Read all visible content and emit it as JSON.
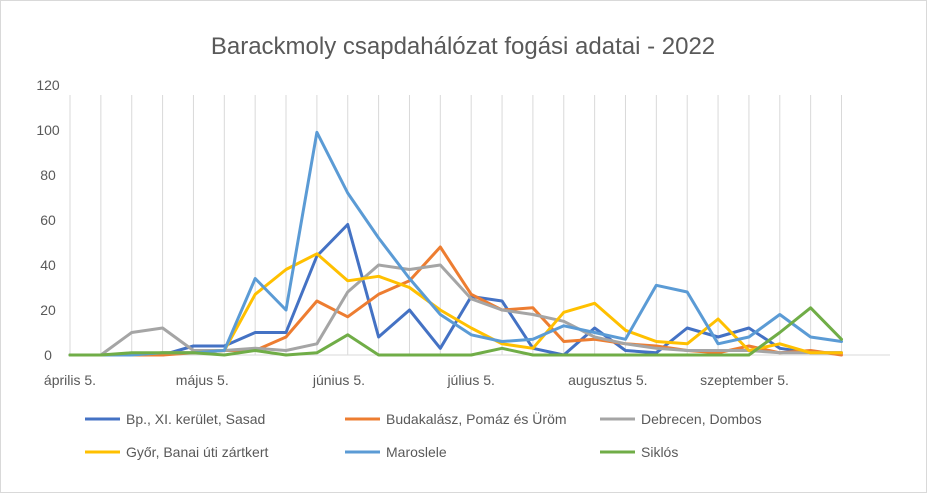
{
  "chart_data": {
    "type": "line",
    "title": "Barackmoly csapdahálózat fogási adatai - 2022",
    "xlabel": "",
    "ylabel": "",
    "ylim": [
      0,
      120
    ],
    "yticks": [
      0,
      20,
      40,
      60,
      80,
      100,
      120
    ],
    "grid": "vertical lines at data points",
    "legend_position": "bottom",
    "x": [
      "2022-04-05",
      "2022-04-12",
      "2022-04-19",
      "2022-04-26",
      "2022-05-03",
      "2022-05-10",
      "2022-05-17",
      "2022-05-24",
      "2022-05-31",
      "2022-06-07",
      "2022-06-14",
      "2022-06-21",
      "2022-06-28",
      "2022-07-05",
      "2022-07-12",
      "2022-07-19",
      "2022-07-26",
      "2022-08-02",
      "2022-08-09",
      "2022-08-16",
      "2022-08-23",
      "2022-08-30",
      "2022-09-06",
      "2022-09-13",
      "2022-09-20",
      "2022-09-27"
    ],
    "x_tick_labels": [
      {
        "label": "április 5.",
        "date": "2022-04-05"
      },
      {
        "label": "május 5.",
        "date": "2022-05-05"
      },
      {
        "label": "június 5.",
        "date": "2022-06-05"
      },
      {
        "label": "július 5.",
        "date": "2022-07-05"
      },
      {
        "label": "augusztus 5.",
        "date": "2022-08-05"
      },
      {
        "label": "szeptember 5.",
        "date": "2022-09-05"
      }
    ],
    "series": [
      {
        "name": "Bp., XI. kerület, Sasad",
        "color": "#4472c4",
        "points": [
          [
            "2022-04-05",
            0
          ],
          [
            "2022-04-19",
            0
          ],
          [
            "2022-04-26",
            0
          ],
          [
            "2022-05-03",
            4
          ],
          [
            "2022-05-10",
            4
          ],
          [
            "2022-05-17",
            10
          ],
          [
            "2022-05-24",
            10
          ],
          [
            "2022-05-31",
            44
          ],
          [
            "2022-06-07",
            58
          ],
          [
            "2022-06-14",
            8
          ],
          [
            "2022-06-21",
            20
          ],
          [
            "2022-06-28",
            3
          ],
          [
            "2022-07-05",
            26
          ],
          [
            "2022-07-12",
            24
          ],
          [
            "2022-07-19",
            3
          ],
          [
            "2022-07-26",
            0
          ],
          [
            "2022-08-02",
            12
          ],
          [
            "2022-08-09",
            2
          ],
          [
            "2022-08-16",
            1
          ],
          [
            "2022-08-23",
            12
          ],
          [
            "2022-08-30",
            8
          ],
          [
            "2022-09-06",
            12
          ],
          [
            "2022-09-13",
            3
          ],
          [
            "2022-09-20",
            1
          ],
          [
            "2022-09-27",
            1
          ]
        ]
      },
      {
        "name": "Budakalász, Pomáz és Üröm",
        "color": "#ed7d31",
        "points": [
          [
            "2022-04-05",
            0
          ],
          [
            "2022-04-19",
            0
          ],
          [
            "2022-04-26",
            0
          ],
          [
            "2022-05-03",
            1
          ],
          [
            "2022-05-10",
            2
          ],
          [
            "2022-05-17",
            2
          ],
          [
            "2022-05-24",
            8
          ],
          [
            "2022-05-31",
            24
          ],
          [
            "2022-06-07",
            17
          ],
          [
            "2022-06-14",
            27
          ],
          [
            "2022-06-21",
            33
          ],
          [
            "2022-06-28",
            48
          ],
          [
            "2022-07-05",
            27
          ],
          [
            "2022-07-12",
            20
          ],
          [
            "2022-07-19",
            21
          ],
          [
            "2022-07-26",
            6
          ],
          [
            "2022-08-02",
            7
          ],
          [
            "2022-08-09",
            5
          ],
          [
            "2022-08-16",
            4
          ],
          [
            "2022-08-23",
            2
          ],
          [
            "2022-08-30",
            1
          ],
          [
            "2022-09-06",
            4
          ],
          [
            "2022-09-13",
            1
          ],
          [
            "2022-09-20",
            2
          ],
          [
            "2022-09-27",
            0
          ]
        ]
      },
      {
        "name": "Debrecen, Dombos",
        "color": "#a5a5a5",
        "points": [
          [
            "2022-04-05",
            0
          ],
          [
            "2022-04-12",
            0
          ],
          [
            "2022-04-19",
            10
          ],
          [
            "2022-04-26",
            12
          ],
          [
            "2022-05-03",
            2
          ],
          [
            "2022-05-10",
            2
          ],
          [
            "2022-05-17",
            3
          ],
          [
            "2022-05-24",
            2
          ],
          [
            "2022-05-31",
            5
          ],
          [
            "2022-06-07",
            28
          ],
          [
            "2022-06-14",
            40
          ],
          [
            "2022-06-21",
            38
          ],
          [
            "2022-06-28",
            40
          ],
          [
            "2022-07-05",
            25
          ],
          [
            "2022-07-12",
            20
          ],
          [
            "2022-07-19",
            18
          ],
          [
            "2022-07-26",
            15
          ],
          [
            "2022-08-02",
            8
          ],
          [
            "2022-08-09",
            5
          ],
          [
            "2022-08-16",
            3
          ],
          [
            "2022-08-23",
            2
          ],
          [
            "2022-08-30",
            2
          ],
          [
            "2022-09-06",
            2
          ],
          [
            "2022-09-13",
            1
          ],
          [
            "2022-09-20",
            1
          ],
          [
            "2022-09-27",
            1
          ]
        ]
      },
      {
        "name": "Győr, Banai úti zártkert",
        "color": "#ffc000",
        "points": [
          [
            "2022-04-05",
            0
          ],
          [
            "2022-04-19",
            0
          ],
          [
            "2022-04-26",
            1
          ],
          [
            "2022-05-03",
            1
          ],
          [
            "2022-05-10",
            2
          ],
          [
            "2022-05-17",
            27
          ],
          [
            "2022-05-24",
            38
          ],
          [
            "2022-05-31",
            45
          ],
          [
            "2022-06-07",
            33
          ],
          [
            "2022-06-14",
            35
          ],
          [
            "2022-06-21",
            30
          ],
          [
            "2022-06-28",
            20
          ],
          [
            "2022-07-05",
            12
          ],
          [
            "2022-07-12",
            5
          ],
          [
            "2022-07-19",
            3
          ],
          [
            "2022-07-26",
            19
          ],
          [
            "2022-08-02",
            23
          ],
          [
            "2022-08-09",
            11
          ],
          [
            "2022-08-16",
            6
          ],
          [
            "2022-08-23",
            5
          ],
          [
            "2022-08-30",
            16
          ],
          [
            "2022-09-06",
            2
          ],
          [
            "2022-09-13",
            5
          ],
          [
            "2022-09-20",
            1
          ],
          [
            "2022-09-27",
            1
          ]
        ]
      },
      {
        "name": "Maroslele",
        "color": "#5b9bd5",
        "points": [
          [
            "2022-04-05",
            0
          ],
          [
            "2022-04-19",
            0
          ],
          [
            "2022-04-26",
            1
          ],
          [
            "2022-05-03",
            1
          ],
          [
            "2022-05-10",
            2
          ],
          [
            "2022-05-17",
            34
          ],
          [
            "2022-05-24",
            20
          ],
          [
            "2022-05-31",
            99
          ],
          [
            "2022-06-07",
            72
          ],
          [
            "2022-06-14",
            52
          ],
          [
            "2022-06-21",
            34
          ],
          [
            "2022-06-28",
            18
          ],
          [
            "2022-07-05",
            9
          ],
          [
            "2022-07-12",
            6
          ],
          [
            "2022-07-19",
            7
          ],
          [
            "2022-07-26",
            13
          ],
          [
            "2022-08-02",
            10
          ],
          [
            "2022-08-09",
            7
          ],
          [
            "2022-08-16",
            31
          ],
          [
            "2022-08-23",
            28
          ],
          [
            "2022-08-30",
            5
          ],
          [
            "2022-09-06",
            8
          ],
          [
            "2022-09-13",
            18
          ],
          [
            "2022-09-20",
            8
          ],
          [
            "2022-09-27",
            6
          ]
        ]
      },
      {
        "name": "Siklós",
        "color": "#70ad47",
        "points": [
          [
            "2022-04-05",
            0
          ],
          [
            "2022-04-12",
            0
          ],
          [
            "2022-04-19",
            1
          ],
          [
            "2022-04-26",
            1
          ],
          [
            "2022-05-03",
            1
          ],
          [
            "2022-05-10",
            0
          ],
          [
            "2022-05-17",
            2
          ],
          [
            "2022-05-24",
            0
          ],
          [
            "2022-05-31",
            1
          ],
          [
            "2022-06-07",
            9
          ],
          [
            "2022-06-14",
            0
          ],
          [
            "2022-06-21",
            0
          ],
          [
            "2022-06-28",
            0
          ],
          [
            "2022-07-05",
            0
          ],
          [
            "2022-07-12",
            3
          ],
          [
            "2022-07-19",
            0
          ],
          [
            "2022-07-26",
            0
          ],
          [
            "2022-08-02",
            0
          ],
          [
            "2022-08-09",
            0
          ],
          [
            "2022-08-16",
            0
          ],
          [
            "2022-08-23",
            0
          ],
          [
            "2022-08-30",
            0
          ],
          [
            "2022-09-06",
            0
          ],
          [
            "2022-09-13",
            10
          ],
          [
            "2022-09-20",
            21
          ],
          [
            "2022-09-27",
            7
          ]
        ]
      }
    ]
  }
}
